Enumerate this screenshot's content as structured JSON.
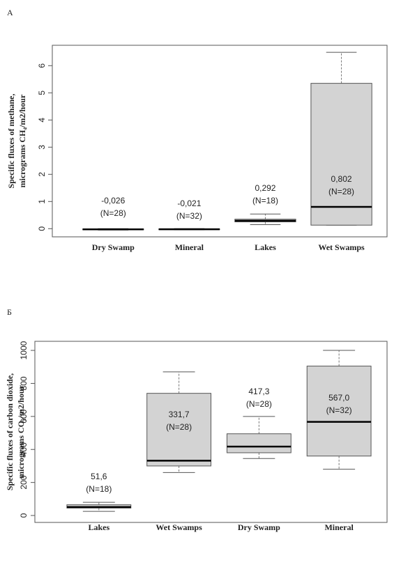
{
  "chart_data": [
    {
      "type": "box",
      "panel": "А",
      "ylabel": [
        "Specific fluxes of methane,",
        "micrograms CH₄/m2/hour"
      ],
      "categories": [
        "Dry Swamp",
        "Mineral",
        "Lakes",
        "Wet Swamps"
      ],
      "boxes": [
        {
          "min": -0.05,
          "q1": -0.04,
          "median": -0.026,
          "q3": -0.01,
          "max": 0
        },
        {
          "min": -0.04,
          "q1": -0.035,
          "median": -0.021,
          "q3": -0.01,
          "max": 0
        },
        {
          "min": 0.15,
          "q1": 0.25,
          "median": 0.292,
          "q3": 0.35,
          "max": 0.54
        },
        {
          "min": 0.13,
          "q1": 0.13,
          "median": 0.802,
          "q3": 5.35,
          "max": 6.49
        }
      ],
      "value_labels": [
        "-0,026",
        "-0,021",
        "0,292",
        "0,802"
      ],
      "n_labels": [
        "(N=28)",
        "(N=32)",
        "(N=18)",
        "(N=28)"
      ],
      "color": "#d3d3d3",
      "ylim": [
        -0.3,
        6.75
      ],
      "yticks": [
        0,
        1,
        2,
        3,
        4,
        5,
        6
      ]
    },
    {
      "type": "box",
      "panel": "Б",
      "ylabel": [
        "Specific fluxes of carbon dioxide,",
        "micrograms CO₂/m2/hour"
      ],
      "categories": [
        "Lakes",
        "Wet Swamps",
        "Dry Swamp",
        "Mineral"
      ],
      "boxes": [
        {
          "min": 25,
          "q1": 45,
          "median": 51.6,
          "q3": 65,
          "max": 80
        },
        {
          "min": 260,
          "q1": 300,
          "median": 331.7,
          "q3": 740,
          "max": 870
        },
        {
          "min": 345,
          "q1": 380,
          "median": 417.3,
          "q3": 495,
          "max": 600
        },
        {
          "min": 280,
          "q1": 360,
          "median": 567.0,
          "q3": 905,
          "max": 1000
        }
      ],
      "value_labels": [
        "51,6",
        "331,7",
        "417,3",
        "567,0"
      ],
      "n_labels": [
        "(N=18)",
        "(N=28)",
        "(N=28)",
        "(N=32)"
      ],
      "color": "#d3d3d3",
      "ylim": [
        -42,
        1055
      ],
      "yticks": [
        0,
        200,
        400,
        600,
        800,
        1000
      ]
    }
  ]
}
